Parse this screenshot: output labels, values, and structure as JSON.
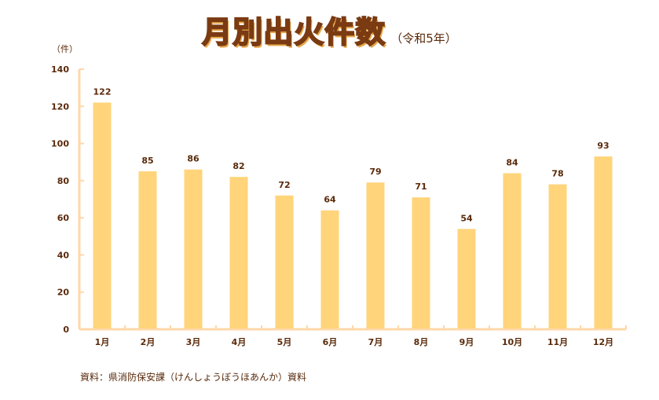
{
  "chart_data": {
    "type": "bar",
    "title": "月別出火件数",
    "subtitle": "（令和5年）",
    "ylabel": "（件）",
    "xlabel": "",
    "categories": [
      "1月",
      "2月",
      "3月",
      "4月",
      "5月",
      "6月",
      "7月",
      "8月",
      "9月",
      "10月",
      "11月",
      "12月"
    ],
    "series": [
      {
        "values": [
          122,
          85,
          86,
          82,
          72,
          64,
          79,
          71,
          54,
          84,
          78,
          93
        ]
      }
    ],
    "ylim": [
      0,
      140
    ],
    "yticks": [
      0,
      20,
      40,
      60,
      80,
      100,
      120,
      140
    ],
    "data_labels": true,
    "grid": false,
    "legend": "none"
  },
  "source": "資料：県消防保安課（けんしょうぼうほあんか）資料",
  "colors": {
    "bar": "#ffd47a",
    "axis": "#ffd7a8",
    "text": "#5a2a0a"
  }
}
